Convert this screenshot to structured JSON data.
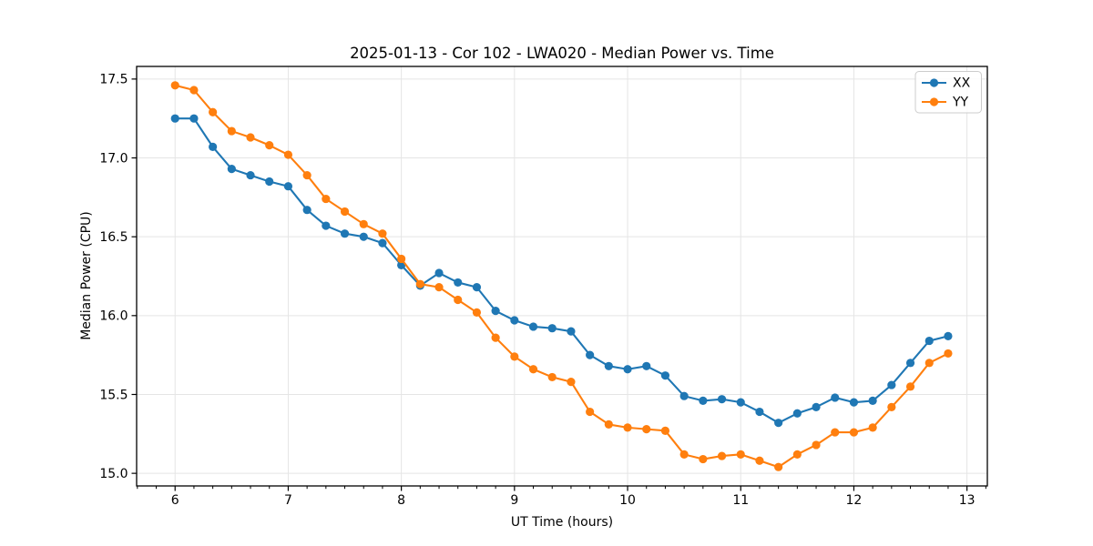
{
  "chart_data": {
    "type": "line",
    "title": "2025-01-13 - Cor 102 - LWA020 - Median Power vs. Time",
    "xlabel": "UT Time (hours)",
    "ylabel": "Median Power (CPU)",
    "x": [
      6,
      6.1667,
      6.3333,
      6.5,
      6.6667,
      6.8333,
      7,
      7.1667,
      7.3333,
      7.5,
      7.6667,
      7.8333,
      8,
      8.1667,
      8.3333,
      8.5,
      8.6667,
      8.8333,
      9,
      9.1667,
      9.3333,
      9.5,
      9.6667,
      9.8333,
      10,
      10.1667,
      10.3333,
      10.5,
      10.6667,
      10.8333,
      11,
      11.1667,
      11.3333,
      11.5,
      11.6667,
      11.8333,
      12,
      12.1667,
      12.3333,
      12.5,
      12.6667,
      12.8333
    ],
    "series": [
      {
        "name": "XX",
        "color": "#1f77b4",
        "values": [
          17.25,
          17.25,
          17.07,
          16.93,
          16.89,
          16.85,
          16.82,
          16.67,
          16.57,
          16.52,
          16.5,
          16.46,
          16.32,
          16.19,
          16.27,
          16.21,
          16.18,
          16.03,
          15.97,
          15.93,
          15.92,
          15.9,
          15.75,
          15.68,
          15.66,
          15.68,
          15.62,
          15.49,
          15.46,
          15.47,
          15.45,
          15.39,
          15.32,
          15.38,
          15.42,
          15.48,
          15.45,
          15.46,
          15.56,
          15.7,
          15.84,
          15.87
        ]
      },
      {
        "name": "YY",
        "color": "#ff7f0e",
        "values": [
          17.46,
          17.43,
          17.29,
          17.17,
          17.13,
          17.08,
          17.02,
          16.89,
          16.74,
          16.66,
          16.58,
          16.52,
          16.36,
          16.2,
          16.18,
          16.1,
          16.02,
          15.86,
          15.74,
          15.66,
          15.61,
          15.58,
          15.39,
          15.31,
          15.29,
          15.28,
          15.27,
          15.12,
          15.09,
          15.11,
          15.12,
          15.08,
          15.04,
          15.12,
          15.18,
          15.26,
          15.26,
          15.29,
          15.42,
          15.55,
          15.7,
          15.76
        ]
      }
    ],
    "xlim": [
      5.66,
      13.18
    ],
    "ylim": [
      14.92,
      17.58
    ],
    "xticks": [
      6,
      7,
      8,
      9,
      10,
      11,
      12,
      13
    ],
    "yticks": [
      15.0,
      15.5,
      16.0,
      16.5,
      17.0,
      17.5
    ],
    "x_minor_tick_step": 0.16667,
    "grid": true,
    "legend_position": "upper right",
    "legend": [
      "XX",
      "YY"
    ],
    "marker": "o"
  },
  "colors": {
    "grid": "#e5e5e5",
    "spine": "#000000",
    "tick": "#000000",
    "background": "#ffffff",
    "legend_border": "#cccccc",
    "legend_fill": "#ffffff"
  }
}
